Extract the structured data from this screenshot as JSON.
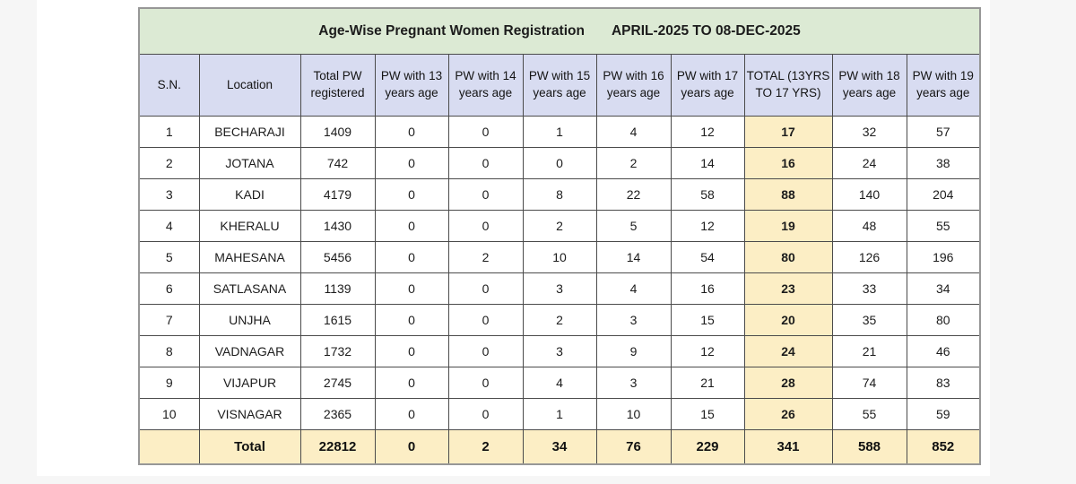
{
  "title": {
    "left": "Age-Wise Pregnant Women Registration",
    "right": "APRIL-2025 TO 08-DEC-2025"
  },
  "table": {
    "columns": [
      "S.N.",
      "Location",
      "Total PW registered",
      "PW with 13 years age",
      "PW with 14 years age",
      "PW with 15 years age",
      "PW with 16 years age",
      "PW with 17 years age",
      "TOTAL (13YRS TO 17 YRS)",
      "PW with 18 years age",
      "PW with 19 years age"
    ],
    "highlight_column_index": 8,
    "rows": [
      [
        "1",
        "BECHARAJI",
        "1409",
        "0",
        "0",
        "1",
        "4",
        "12",
        "17",
        "32",
        "57"
      ],
      [
        "2",
        "JOTANA",
        "742",
        "0",
        "0",
        "0",
        "2",
        "14",
        "16",
        "24",
        "38"
      ],
      [
        "3",
        "KADI",
        "4179",
        "0",
        "0",
        "8",
        "22",
        "58",
        "88",
        "140",
        "204"
      ],
      [
        "4",
        "KHERALU",
        "1430",
        "0",
        "0",
        "2",
        "5",
        "12",
        "19",
        "48",
        "55"
      ],
      [
        "5",
        "MAHESANA",
        "5456",
        "0",
        "2",
        "10",
        "14",
        "54",
        "80",
        "126",
        "196"
      ],
      [
        "6",
        "SATLASANA",
        "1139",
        "0",
        "0",
        "3",
        "4",
        "16",
        "23",
        "33",
        "34"
      ],
      [
        "7",
        "UNJHA",
        "1615",
        "0",
        "0",
        "2",
        "3",
        "15",
        "20",
        "35",
        "80"
      ],
      [
        "8",
        "VADNAGAR",
        "1732",
        "0",
        "0",
        "3",
        "9",
        "12",
        "24",
        "21",
        "46"
      ],
      [
        "9",
        "VIJAPUR",
        "2745",
        "0",
        "0",
        "4",
        "3",
        "21",
        "28",
        "74",
        "83"
      ],
      [
        "10",
        "VISNAGAR",
        "2365",
        "0",
        "0",
        "1",
        "10",
        "15",
        "26",
        "55",
        "59"
      ]
    ],
    "total_row": [
      "",
      "Total",
      "22812",
      "0",
      "2",
      "34",
      "76",
      "229",
      "341",
      "588",
      "852"
    ]
  },
  "colors": {
    "page_bg": "#f6f6f6",
    "panel_bg": "#ffffff",
    "title_bg": "#dcead4",
    "header_bg": "#d8dcf1",
    "hl_bg": "#fceec5",
    "outer_border": "#979797",
    "cell_border": "#4b4b4b"
  }
}
